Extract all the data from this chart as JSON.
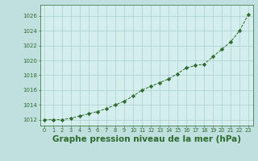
{
  "x": [
    0,
    1,
    2,
    3,
    4,
    5,
    6,
    7,
    8,
    9,
    10,
    11,
    12,
    13,
    14,
    15,
    16,
    17,
    18,
    19,
    20,
    21,
    22,
    23
  ],
  "y": [
    1012.0,
    1012.0,
    1012.0,
    1012.2,
    1012.5,
    1012.8,
    1013.1,
    1013.5,
    1014.0,
    1014.5,
    1015.2,
    1016.0,
    1016.5,
    1017.0,
    1017.5,
    1018.2,
    1019.0,
    1019.3,
    1019.5,
    1020.5,
    1021.5,
    1022.5,
    1024.0,
    1026.2
  ],
  "line_color": "#2d6a2d",
  "marker_color": "#2d6a2d",
  "bg_plot": "#d4eded",
  "bg_fig": "#c0e0e0",
  "grid_color": "#aacfcf",
  "xlabel": "Graphe pression niveau de la mer (hPa)",
  "xlabel_fontsize": 7.5,
  "ytick_start": 1012,
  "ytick_end": 1026,
  "ytick_step": 2,
  "xlim": [
    -0.5,
    23.5
  ],
  "ylim": [
    1011.2,
    1027.5
  ]
}
